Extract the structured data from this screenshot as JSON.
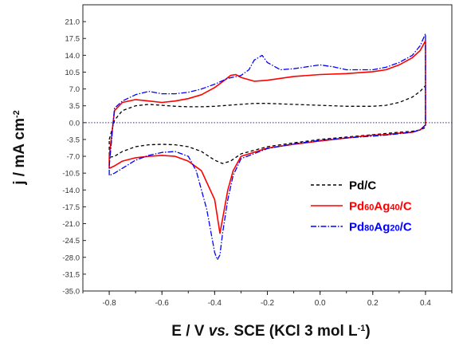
{
  "chart_data": {
    "type": "line",
    "xlabel": {
      "prefix": "E / V ",
      "italic": "vs.",
      "suffix": " SCE (KCl 3 mol L",
      "sup": "-1",
      "end": ")"
    },
    "ylabel": {
      "main": "j / mA cm",
      "sup": "-2"
    },
    "xlim": [
      -0.9,
      0.5
    ],
    "ylim": [
      -35.0,
      24.5
    ],
    "x_ticks": [
      "-0.8",
      "-0.6",
      "-0.4",
      "-0.2",
      "0.0",
      "0.2",
      "0.4"
    ],
    "x_tick_values": [
      -0.8,
      -0.6,
      -0.4,
      -0.2,
      0.0,
      0.2,
      0.4
    ],
    "y_ticks": [
      "21.0",
      "17.5",
      "14.0",
      "10.5",
      "7.0",
      "3.5",
      "0.0",
      "-3.5",
      "-7.0",
      "-10.5",
      "-14.0",
      "-17.5",
      "-21.0",
      "-24.5",
      "-28.0",
      "-31.5",
      "-35.0"
    ],
    "y_tick_values": [
      21.0,
      17.5,
      14.0,
      10.5,
      7.0,
      3.5,
      0.0,
      -3.5,
      -7.0,
      -10.5,
      -14.0,
      -17.5,
      -21.0,
      -24.5,
      -28.0,
      -31.5,
      -35.0
    ],
    "zero_line": true,
    "legend_position": "lower-right",
    "series": [
      {
        "name": "Pd/C",
        "name_parts": [
          {
            "t": "Pd/C",
            "sub": false
          }
        ],
        "color": "#000000",
        "dash": "4,3",
        "x": [
          -0.8,
          -0.78,
          -0.75,
          -0.7,
          -0.65,
          -0.6,
          -0.55,
          -0.5,
          -0.45,
          -0.4,
          -0.35,
          -0.3,
          -0.25,
          -0.2,
          -0.1,
          0.0,
          0.1,
          0.2,
          0.25,
          0.3,
          0.35,
          0.38,
          0.4,
          0.4,
          0.38,
          0.35,
          0.3,
          0.2,
          0.1,
          0.0,
          -0.1,
          -0.2,
          -0.3,
          -0.34,
          -0.37,
          -0.4,
          -0.45,
          -0.5,
          -0.55,
          -0.6,
          -0.65,
          -0.7,
          -0.75,
          -0.78,
          -0.8
        ],
        "y": [
          -3.5,
          0.5,
          2.5,
          3.5,
          3.8,
          3.6,
          3.4,
          3.3,
          3.3,
          3.4,
          3.6,
          3.8,
          4.0,
          4.0,
          3.8,
          3.6,
          3.4,
          3.4,
          3.6,
          4.2,
          5.3,
          6.5,
          7.7,
          -1.0,
          -1.5,
          -1.8,
          -2.0,
          -2.5,
          -3.0,
          -3.5,
          -4.2,
          -5.0,
          -6.5,
          -8.0,
          -8.5,
          -7.8,
          -6.0,
          -5.0,
          -4.6,
          -4.5,
          -4.6,
          -5.0,
          -6.0,
          -7.0,
          -7.2
        ]
      },
      {
        "name": "Pd60Ag40/C",
        "name_parts": [
          {
            "t": "Pd",
            "sub": false
          },
          {
            "t": "60",
            "sub": true
          },
          {
            "t": "Ag",
            "sub": false
          },
          {
            "t": "40",
            "sub": true
          },
          {
            "t": "/C",
            "sub": false
          }
        ],
        "color": "#ff0000",
        "dash": "",
        "x": [
          -0.8,
          -0.78,
          -0.75,
          -0.7,
          -0.65,
          -0.6,
          -0.55,
          -0.5,
          -0.45,
          -0.4,
          -0.37,
          -0.34,
          -0.32,
          -0.3,
          -0.25,
          -0.2,
          -0.1,
          0.0,
          0.1,
          0.2,
          0.25,
          0.3,
          0.35,
          0.38,
          0.4,
          0.4,
          0.38,
          0.35,
          0.3,
          0.25,
          0.2,
          0.1,
          0.0,
          -0.1,
          -0.2,
          -0.3,
          -0.33,
          -0.35,
          -0.37,
          -0.38,
          -0.4,
          -0.45,
          -0.5,
          -0.55,
          -0.6,
          -0.65,
          -0.7,
          -0.75,
          -0.78,
          -0.8
        ],
        "y": [
          -7.0,
          2.5,
          4.2,
          4.8,
          4.5,
          4.2,
          4.5,
          5.0,
          5.8,
          7.3,
          8.5,
          9.8,
          10.0,
          9.4,
          8.6,
          8.8,
          9.6,
          10.0,
          10.2,
          10.6,
          11.0,
          12.0,
          13.5,
          15.0,
          17.0,
          -0.5,
          -1.5,
          -2.0,
          -2.2,
          -2.5,
          -2.6,
          -3.2,
          -3.8,
          -4.5,
          -5.3,
          -7.0,
          -10.0,
          -14.0,
          -20.0,
          -23.0,
          -16.0,
          -10.0,
          -8.0,
          -7.0,
          -6.8,
          -7.0,
          -7.3,
          -8.0,
          -9.0,
          -9.5
        ]
      },
      {
        "name": "Pd80Ag20/C",
        "name_parts": [
          {
            "t": "Pd",
            "sub": false
          },
          {
            "t": "80",
            "sub": true
          },
          {
            "t": "Ag",
            "sub": false
          },
          {
            "t": "20",
            "sub": true
          },
          {
            "t": "/C",
            "sub": false
          }
        ],
        "color": "#0000ff",
        "dash": "7,2,1.5,2",
        "x": [
          -0.8,
          -0.78,
          -0.75,
          -0.7,
          -0.65,
          -0.6,
          -0.55,
          -0.5,
          -0.45,
          -0.4,
          -0.35,
          -0.3,
          -0.27,
          -0.25,
          -0.22,
          -0.2,
          -0.15,
          -0.1,
          0.0,
          0.05,
          0.1,
          0.2,
          0.25,
          0.3,
          0.35,
          0.38,
          0.4,
          0.4,
          0.38,
          0.35,
          0.3,
          0.25,
          0.2,
          0.1,
          0.0,
          -0.1,
          -0.2,
          -0.3,
          -0.33,
          -0.35,
          -0.37,
          -0.38,
          -0.39,
          -0.4,
          -0.43,
          -0.47,
          -0.5,
          -0.55,
          -0.6,
          -0.65,
          -0.7,
          -0.75,
          -0.78,
          -0.8
        ],
        "y": [
          -9.0,
          3.0,
          4.5,
          5.8,
          6.5,
          6.0,
          6.0,
          6.3,
          7.0,
          8.0,
          9.2,
          9.8,
          11.0,
          13.0,
          14.0,
          12.5,
          11.0,
          11.2,
          12.0,
          11.6,
          11.0,
          11.0,
          11.5,
          12.5,
          14.0,
          16.0,
          18.5,
          -0.5,
          -1.5,
          -2.0,
          -2.3,
          -2.6,
          -2.8,
          -3.2,
          -3.7,
          -4.4,
          -5.4,
          -7.5,
          -11.0,
          -16.0,
          -23.0,
          -27.5,
          -28.5,
          -27.0,
          -18.0,
          -10.0,
          -7.0,
          -6.0,
          -6.2,
          -6.8,
          -7.8,
          -9.5,
          -10.5,
          -11.0
        ]
      }
    ]
  }
}
